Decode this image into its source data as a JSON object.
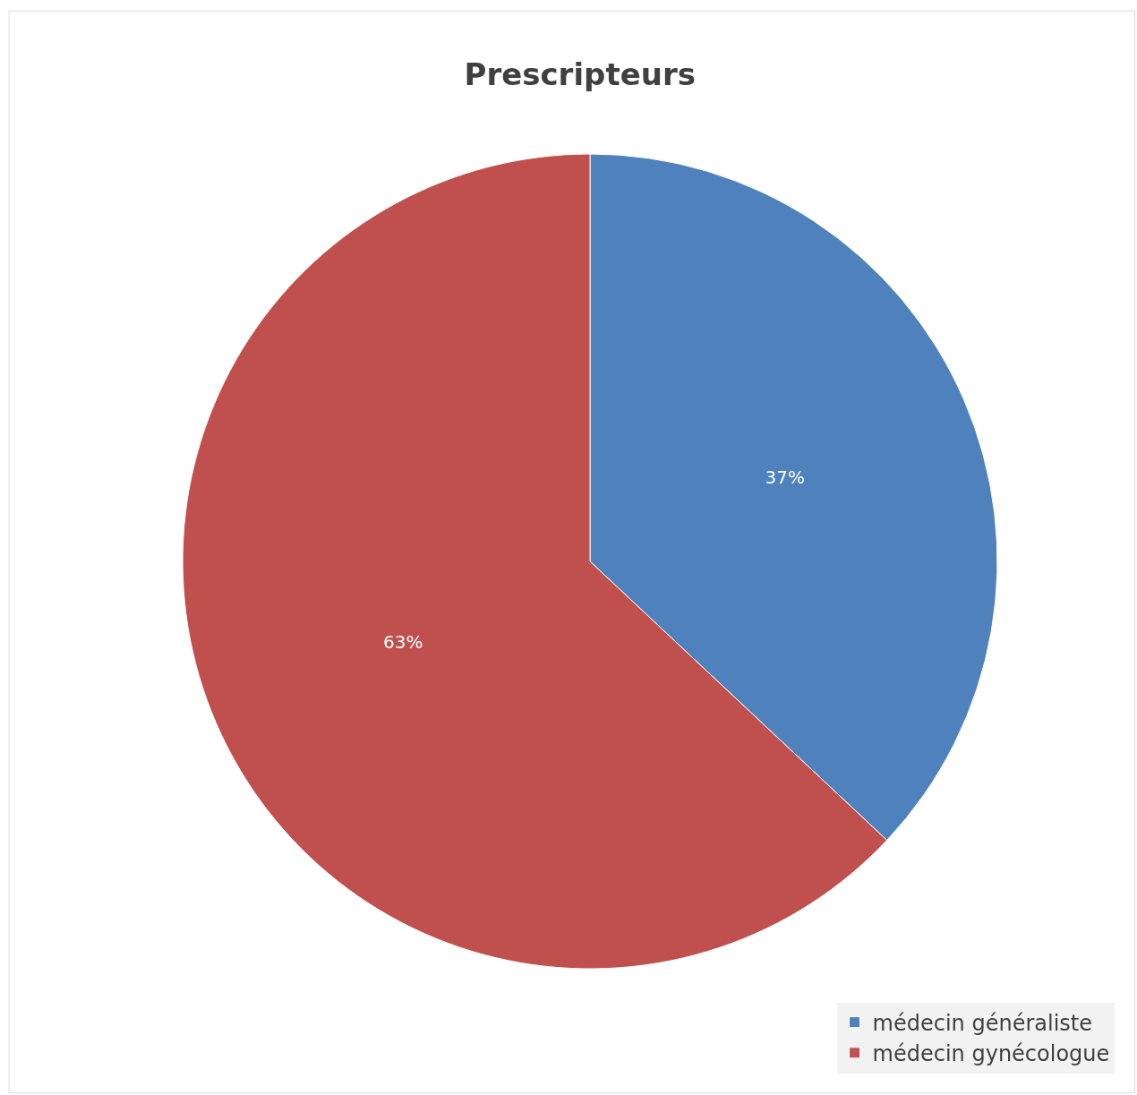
{
  "chart_data": {
    "type": "pie",
    "title": "Prescripteurs",
    "categories": [
      "médecin généraliste",
      "médecin gynécologue"
    ],
    "values": [
      37,
      63
    ],
    "value_labels": [
      "37%",
      "63%"
    ],
    "colors": [
      "#4f81bd",
      "#c0504d"
    ],
    "legend": "bottom right"
  }
}
